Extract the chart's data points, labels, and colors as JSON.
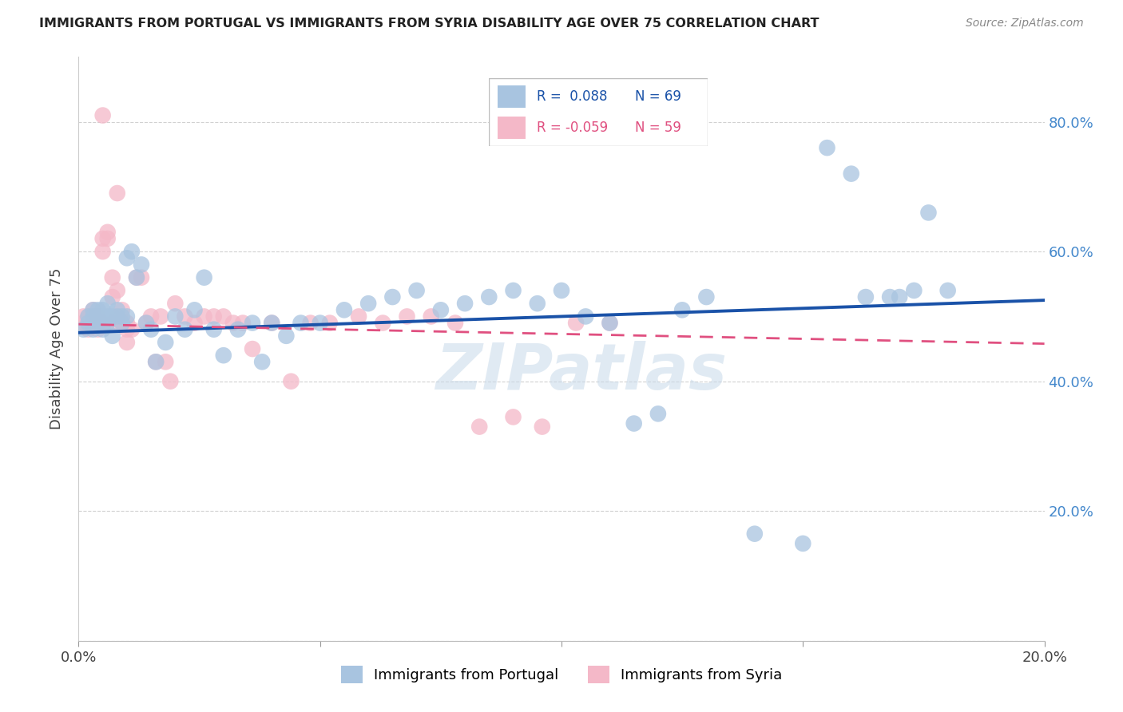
{
  "title": "IMMIGRANTS FROM PORTUGAL VS IMMIGRANTS FROM SYRIA DISABILITY AGE OVER 75 CORRELATION CHART",
  "source": "Source: ZipAtlas.com",
  "ylabel": "Disability Age Over 75",
  "xlim": [
    0.0,
    0.2
  ],
  "ylim": [
    0.0,
    0.9
  ],
  "yticks": [
    0.0,
    0.2,
    0.4,
    0.6,
    0.8
  ],
  "ytick_labels": [
    "",
    "20.0%",
    "40.0%",
    "60.0%",
    "80.0%"
  ],
  "xticks": [
    0.0,
    0.05,
    0.1,
    0.15,
    0.2
  ],
  "xtick_labels": [
    "0.0%",
    "",
    "",
    "",
    "20.0%"
  ],
  "blue_color": "#a8c4e0",
  "pink_color": "#f4b8c8",
  "blue_line_color": "#1a52a8",
  "pink_line_color": "#e05080",
  "watermark": "ZIPatlas",
  "portugal_x": [
    0.001,
    0.002,
    0.002,
    0.003,
    0.003,
    0.003,
    0.004,
    0.004,
    0.004,
    0.005,
    0.005,
    0.005,
    0.006,
    0.006,
    0.006,
    0.007,
    0.007,
    0.008,
    0.008,
    0.009,
    0.009,
    0.01,
    0.01,
    0.011,
    0.012,
    0.013,
    0.014,
    0.015,
    0.016,
    0.018,
    0.02,
    0.022,
    0.024,
    0.026,
    0.028,
    0.03,
    0.033,
    0.036,
    0.038,
    0.04,
    0.043,
    0.046,
    0.05,
    0.055,
    0.06,
    0.065,
    0.07,
    0.075,
    0.08,
    0.085,
    0.09,
    0.095,
    0.1,
    0.105,
    0.11,
    0.115,
    0.12,
    0.125,
    0.13,
    0.14,
    0.15,
    0.155,
    0.16,
    0.163,
    0.168,
    0.17,
    0.173,
    0.176,
    0.18
  ],
  "portugal_y": [
    0.48,
    0.5,
    0.49,
    0.51,
    0.5,
    0.48,
    0.49,
    0.51,
    0.5,
    0.5,
    0.48,
    0.51,
    0.52,
    0.49,
    0.5,
    0.5,
    0.47,
    0.5,
    0.51,
    0.49,
    0.5,
    0.59,
    0.5,
    0.6,
    0.56,
    0.58,
    0.49,
    0.48,
    0.43,
    0.46,
    0.5,
    0.48,
    0.51,
    0.56,
    0.48,
    0.44,
    0.48,
    0.49,
    0.43,
    0.49,
    0.47,
    0.49,
    0.49,
    0.51,
    0.52,
    0.53,
    0.54,
    0.51,
    0.52,
    0.53,
    0.54,
    0.52,
    0.54,
    0.5,
    0.49,
    0.335,
    0.35,
    0.51,
    0.53,
    0.165,
    0.15,
    0.76,
    0.72,
    0.53,
    0.53,
    0.53,
    0.54,
    0.66,
    0.54
  ],
  "syria_x": [
    0.001,
    0.001,
    0.002,
    0.002,
    0.003,
    0.003,
    0.003,
    0.004,
    0.004,
    0.004,
    0.005,
    0.005,
    0.005,
    0.006,
    0.006,
    0.007,
    0.007,
    0.007,
    0.008,
    0.008,
    0.009,
    0.009,
    0.01,
    0.01,
    0.011,
    0.012,
    0.013,
    0.014,
    0.015,
    0.016,
    0.017,
    0.018,
    0.019,
    0.02,
    0.022,
    0.024,
    0.026,
    0.028,
    0.03,
    0.032,
    0.034,
    0.036,
    0.04,
    0.044,
    0.048,
    0.052,
    0.058,
    0.063,
    0.068,
    0.073,
    0.078,
    0.083,
    0.09,
    0.096,
    0.103,
    0.11,
    0.005,
    0.008,
    0.01
  ],
  "syria_y": [
    0.49,
    0.5,
    0.5,
    0.48,
    0.49,
    0.51,
    0.5,
    0.5,
    0.48,
    0.49,
    0.62,
    0.6,
    0.49,
    0.63,
    0.62,
    0.56,
    0.53,
    0.49,
    0.54,
    0.5,
    0.49,
    0.51,
    0.49,
    0.46,
    0.48,
    0.56,
    0.56,
    0.49,
    0.5,
    0.43,
    0.5,
    0.43,
    0.4,
    0.52,
    0.5,
    0.49,
    0.5,
    0.5,
    0.5,
    0.49,
    0.49,
    0.45,
    0.49,
    0.4,
    0.49,
    0.49,
    0.5,
    0.49,
    0.5,
    0.5,
    0.49,
    0.33,
    0.345,
    0.33,
    0.49,
    0.49,
    0.81,
    0.69,
    0.48
  ]
}
